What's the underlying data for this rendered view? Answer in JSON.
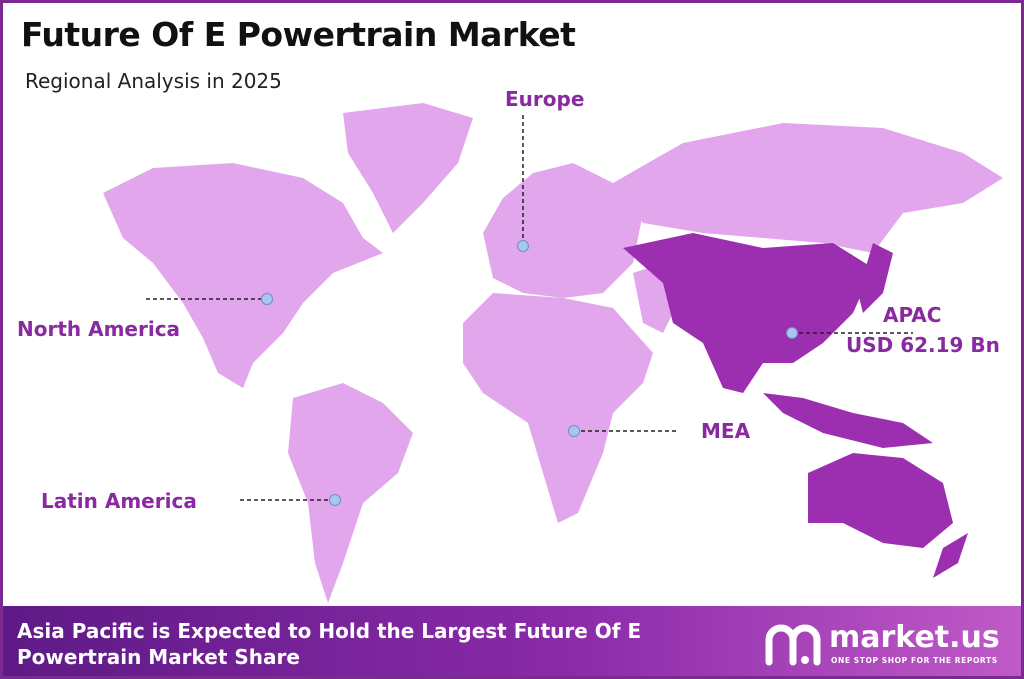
{
  "header": {
    "title": "Future Of E Powertrain Market",
    "subtitle": "Regional Analysis in 2025"
  },
  "regions": [
    {
      "label": "Europe"
    },
    {
      "label": "North America"
    },
    {
      "label": "APAC",
      "value_label": "USD 62.19 Bn"
    },
    {
      "label": "MEA"
    },
    {
      "label": "Latin America"
    }
  ],
  "footer": {
    "text": "Asia Pacific is Expected to Hold the Largest Future Of E Powertrain Market Share",
    "logo": "market.us",
    "tagline": "ONE STOP SHOP FOR THE REPORTS"
  }
}
